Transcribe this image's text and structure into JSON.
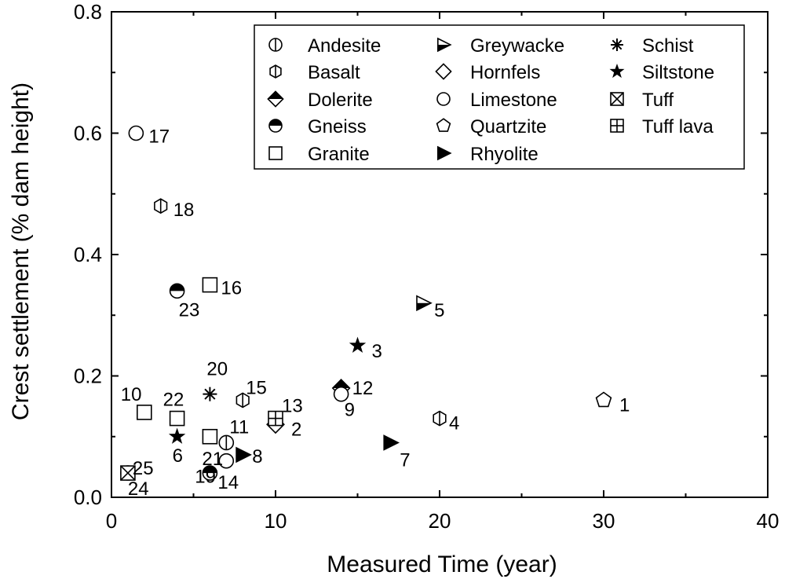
{
  "chart_data": {
    "type": "scatter",
    "xlabel": "Measured Time (year)",
    "ylabel": "Crest settlement (% dam height)",
    "xlim": [
      0,
      40
    ],
    "ylim": [
      0,
      0.8
    ],
    "x_ticks": [
      0,
      10,
      20,
      30,
      40
    ],
    "x_tick_labels": [
      "0",
      "10",
      "20",
      "30",
      "40"
    ],
    "y_ticks": [
      0.0,
      0.2,
      0.4,
      0.6,
      0.8
    ],
    "y_tick_labels": [
      "0.0",
      "0.2",
      "0.4",
      "0.6",
      "0.8"
    ],
    "grid": false,
    "legend_position": "top-right",
    "series": [
      {
        "name": "Andesite",
        "marker": "circle-vline",
        "points": [
          {
            "x": 7,
            "y": 0.09,
            "label": "11"
          }
        ]
      },
      {
        "name": "Basalt",
        "marker": "hexagon-vline",
        "points": [
          {
            "x": 3,
            "y": 0.48,
            "label": "18"
          },
          {
            "x": 8,
            "y": 0.16,
            "label": "15"
          },
          {
            "x": 20,
            "y": 0.13,
            "label": "4"
          }
        ]
      },
      {
        "name": "Dolerite",
        "marker": "diamond-tophalf",
        "points": [
          {
            "x": 14,
            "y": 0.18,
            "label": "12"
          }
        ]
      },
      {
        "name": "Gneiss",
        "marker": "circle-tophalf",
        "points": [
          {
            "x": 4,
            "y": 0.34,
            "label": "23"
          },
          {
            "x": 6,
            "y": 0.04,
            "label": "14"
          },
          {
            "x": 1,
            "y": 0.04,
            "label": "25"
          }
        ]
      },
      {
        "name": "Granite",
        "marker": "square",
        "points": [
          {
            "x": 6,
            "y": 0.35,
            "label": "16"
          },
          {
            "x": 2,
            "y": 0.14,
            "label": "10"
          },
          {
            "x": 4,
            "y": 0.13,
            "label": "22"
          },
          {
            "x": 6,
            "y": 0.1,
            "label": "21"
          }
        ]
      },
      {
        "name": "Greywacke",
        "marker": "triangle-right-half",
        "points": [
          {
            "x": 19,
            "y": 0.32,
            "label": "5"
          }
        ]
      },
      {
        "name": "Hornfels",
        "marker": "diamond",
        "points": [
          {
            "x": 10,
            "y": 0.12,
            "label": "2"
          }
        ]
      },
      {
        "name": "Limestone",
        "marker": "circle",
        "points": [
          {
            "x": 1.5,
            "y": 0.6,
            "label": "17"
          },
          {
            "x": 14,
            "y": 0.17,
            "label": "9"
          },
          {
            "x": 7,
            "y": 0.06,
            "label": "19"
          }
        ]
      },
      {
        "name": "Quartzite",
        "marker": "pentagon",
        "points": [
          {
            "x": 30,
            "y": 0.16,
            "label": "1"
          }
        ]
      },
      {
        "name": "Rhyolite",
        "marker": "triangle-right",
        "points": [
          {
            "x": 17,
            "y": 0.09,
            "label": "7"
          },
          {
            "x": 8,
            "y": 0.07,
            "label": "8"
          }
        ]
      },
      {
        "name": "Schist",
        "marker": "asterisk",
        "points": [
          {
            "x": 6,
            "y": 0.17,
            "label": "20"
          }
        ]
      },
      {
        "name": "Siltstone",
        "marker": "star",
        "points": [
          {
            "x": 15,
            "y": 0.25,
            "label": "3"
          },
          {
            "x": 4,
            "y": 0.1,
            "label": "6"
          }
        ]
      },
      {
        "name": "Tuff",
        "marker": "square-x",
        "points": [
          {
            "x": 1,
            "y": 0.04,
            "label": "24"
          }
        ]
      },
      {
        "name": "Tuff lava",
        "marker": "square-plus",
        "points": [
          {
            "x": 10,
            "y": 0.13,
            "label": "13"
          }
        ]
      }
    ]
  }
}
